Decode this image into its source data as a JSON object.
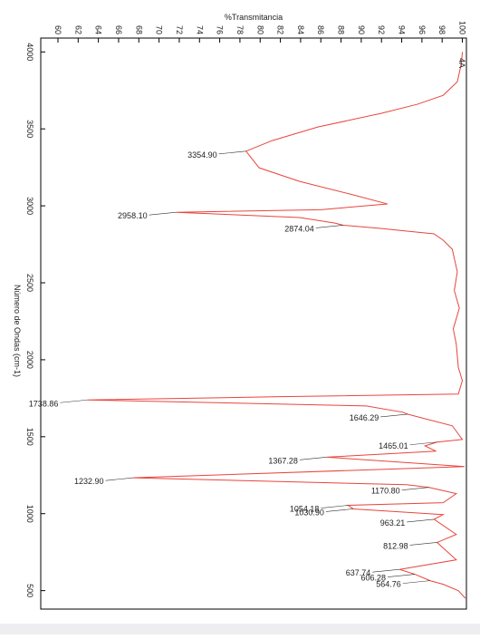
{
  "chart_data": {
    "type": "line",
    "title": "%Transmitancia",
    "y_label": "Número de Ondas (cm-1)",
    "annotation": "4A",
    "xlim": [
      58.3,
      100.4
    ],
    "xticks": [
      60,
      62,
      64,
      66,
      68,
      70,
      72,
      74,
      76,
      78,
      80,
      82,
      84,
      86,
      88,
      90,
      92,
      94,
      96,
      98,
      100
    ],
    "ylim": [
      4090,
      380
    ],
    "yticks": [
      4000,
      3500,
      3000,
      2500,
      2000,
      1500,
      1000,
      500
    ],
    "series": [
      {
        "name": "4A",
        "color": "#e8453c",
        "x": [
          4000,
          3924,
          3806,
          3718,
          3659,
          3600,
          3512,
          3424,
          3354.9,
          3247,
          3159,
          3071,
          3012,
          2975,
          2958.1,
          2924,
          2888,
          2874.04,
          2853,
          2818,
          2777,
          2718,
          2571,
          2450,
          2335,
          2200,
          2100,
          1950,
          1865,
          1777,
          1760,
          1738.86,
          1700,
          1659,
          1646.29,
          1571,
          1482,
          1465.01,
          1440,
          1406,
          1367.28,
          1306,
          1232.9,
          1188,
          1170.8,
          1130,
          1071,
          1054.18,
          1030.9,
          994,
          963.21,
          865,
          812.98,
          700,
          637.74,
          606.28,
          564.76,
          541,
          500,
          450
        ],
        "values": [
          100,
          99.9,
          99.5,
          98.1,
          95.5,
          91.9,
          85.7,
          81.2,
          78.6,
          79.9,
          83.9,
          89.2,
          92.6,
          86,
          71.7,
          83.9,
          87.4,
          88.2,
          91.9,
          97.2,
          98.1,
          99,
          99.5,
          99.2,
          99.7,
          99.1,
          99.4,
          99.6,
          100,
          99.6,
          82,
          62.9,
          90.5,
          94.1,
          94.6,
          99,
          100,
          97.5,
          96.3,
          97.4,
          86.6,
          100.2,
          67.4,
          94.5,
          96.7,
          99.4,
          98.1,
          88.7,
          89.2,
          98.1,
          97.2,
          99.4,
          97.5,
          99.4,
          93.8,
          95.3,
          96.8,
          98.1,
          99.6,
          100.3
        ]
      }
    ],
    "peaks": [
      {
        "value": 3354.9,
        "label": "3354.90"
      },
      {
        "value": 2958.1,
        "label": "2958.10"
      },
      {
        "value": 2874.04,
        "label": "2874.04"
      },
      {
        "value": 1738.86,
        "label": "1738.86"
      },
      {
        "value": 1646.29,
        "label": "1646.29"
      },
      {
        "value": 1465.01,
        "label": "1465.01"
      },
      {
        "value": 1367.28,
        "label": "1367.28"
      },
      {
        "value": 1232.9,
        "label": "1232.90"
      },
      {
        "value": 1170.8,
        "label": "1170.80"
      },
      {
        "value": 1054.18,
        "label": "1054.18"
      },
      {
        "value": 1030.9,
        "label": "1030.90"
      },
      {
        "value": 963.21,
        "label": "963.21"
      },
      {
        "value": 812.98,
        "label": "812.98"
      },
      {
        "value": 637.74,
        "label": "637.74"
      },
      {
        "value": 606.28,
        "label": "606.28"
      },
      {
        "value": 564.76,
        "label": "564.76"
      }
    ]
  }
}
